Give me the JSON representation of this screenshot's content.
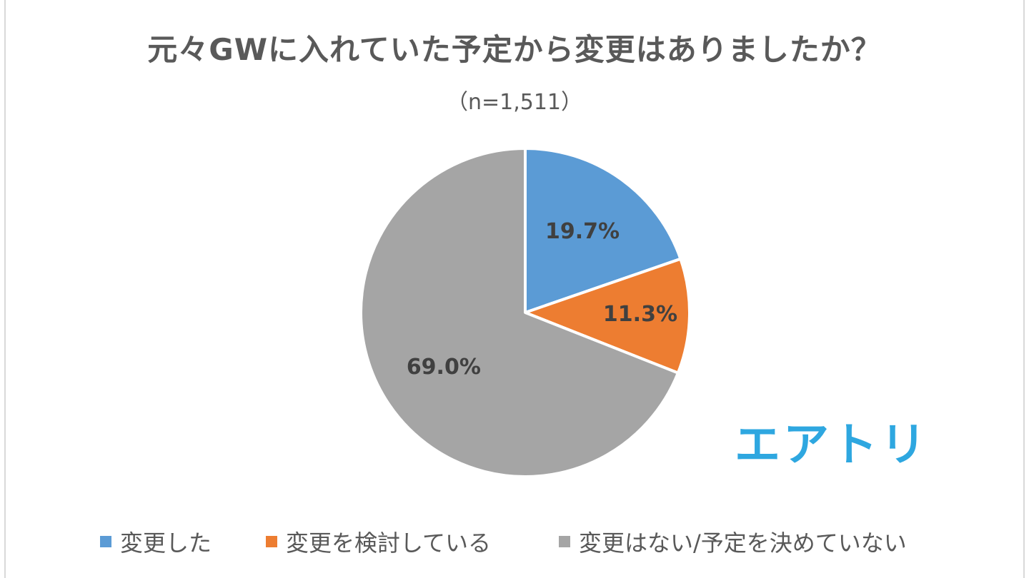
{
  "title": "元々GWに入れていた予定から変更はありましたか？",
  "subtitle": "（n=1,511）",
  "logo": {
    "text": "エアトリ",
    "color": "#2ea7e0"
  },
  "chart_data": {
    "type": "pie",
    "title": "元々GWに入れていた予定から変更はありましたか？",
    "subtitle": "（n=1,511）",
    "legend_position": "bottom",
    "categories": [
      "変更した",
      "変更を検討している",
      "変更はない/予定を決めていない"
    ],
    "values": [
      19.7,
      11.3,
      69.0
    ],
    "labels": [
      "19.7%",
      "11.3%",
      "69.0%"
    ],
    "colors": [
      "#5b9bd5",
      "#ed7d31",
      "#a5a5a5"
    ]
  }
}
